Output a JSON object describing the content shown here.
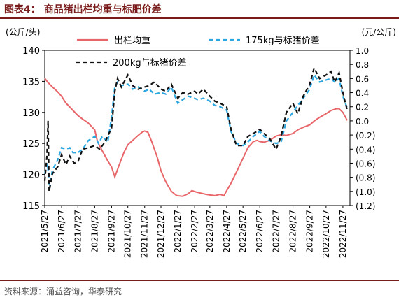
{
  "title": "图表4： 商品猪出栏均重与标肥价差",
  "source": "资料来源：涌益咨询，华泰研究",
  "chart_data": {
    "type": "line",
    "left_axis": {
      "unit": "(公斤/头)",
      "min": 115,
      "max": 140,
      "ticks": [
        "115",
        "120",
        "125",
        "130",
        "135",
        "140"
      ]
    },
    "right_axis": {
      "unit": "(元/公斤)",
      "min": -1.2,
      "max": 1.0,
      "ticks": [
        "1.0",
        "0.8",
        "0.6",
        "0.4",
        "0.2",
        "0.0",
        "(0.2)",
        "(0.4)",
        "(0.6)",
        "(0.8)",
        "(1.0)",
        "(1.2)"
      ]
    },
    "x_ticks": [
      "2021/5/27",
      "2021/6/27",
      "2021/7/27",
      "2021/8/27",
      "2021/9/27",
      "2021/10/27",
      "2021/11/27",
      "2021/12/27",
      "2022/1/27",
      "2022/2/27",
      "2022/3/27",
      "2022/4/27",
      "2022/5/27",
      "2022/6/27",
      "2022/7/27",
      "2022/8/27",
      "2022/9/27",
      "2022/10/27",
      "2022/11/27"
    ],
    "series": [
      {
        "name": "出栏均重",
        "axis": "left",
        "color": "#e8666a",
        "dash": "",
        "points": [
          [
            "2021/5/27",
            135.5
          ],
          [
            "2021/6/2",
            134.8
          ],
          [
            "2021/6/10",
            134.1
          ],
          [
            "2021/6/20",
            133.3
          ],
          [
            "2021/6/27",
            132.6
          ],
          [
            "2021/7/5",
            131.5
          ],
          [
            "2021/7/15",
            130.6
          ],
          [
            "2021/7/27",
            129.5
          ],
          [
            "2021/8/5",
            128.9
          ],
          [
            "2021/8/15",
            128.3
          ],
          [
            "2021/8/27",
            127.2
          ],
          [
            "2021/9/1",
            125.3
          ],
          [
            "2021/9/10",
            123.8
          ],
          [
            "2021/9/20",
            122.2
          ],
          [
            "2021/9/27",
            121.2
          ],
          [
            "2021/10/3",
            119.6
          ],
          [
            "2021/10/10",
            121.3
          ],
          [
            "2021/10/20",
            123.6
          ],
          [
            "2021/10/27",
            124.8
          ],
          [
            "2021/11/5",
            125.5
          ],
          [
            "2021/11/15",
            126.3
          ],
          [
            "2021/11/22",
            126.8
          ],
          [
            "2021/11/27",
            127.0
          ],
          [
            "2021/12/3",
            126.8
          ],
          [
            "2021/12/10",
            125.3
          ],
          [
            "2021/12/20",
            122.8
          ],
          [
            "2021/12/27",
            120.6
          ],
          [
            "2022/1/5",
            118.8
          ],
          [
            "2022/1/15",
            117.3
          ],
          [
            "2022/1/25",
            116.6
          ],
          [
            "2022/2/5",
            116.5
          ],
          [
            "2022/2/15",
            116.9
          ],
          [
            "2022/2/22",
            117.4
          ],
          [
            "2022/3/1",
            117.2
          ],
          [
            "2022/3/10",
            117.0
          ],
          [
            "2022/3/20",
            116.8
          ],
          [
            "2022/3/27",
            116.7
          ],
          [
            "2022/4/5",
            116.6
          ],
          [
            "2022/4/15",
            116.8
          ],
          [
            "2022/4/22",
            116.6
          ],
          [
            "2022/4/27",
            117.4
          ],
          [
            "2022/5/5",
            118.6
          ],
          [
            "2022/5/15",
            120.4
          ],
          [
            "2022/5/27",
            122.6
          ],
          [
            "2022/6/5",
            124.3
          ],
          [
            "2022/6/15",
            125.3
          ],
          [
            "2022/6/22",
            125.5
          ],
          [
            "2022/6/27",
            125.3
          ],
          [
            "2022/7/5",
            125.2
          ],
          [
            "2022/7/15",
            125.5
          ],
          [
            "2022/7/22",
            125.9
          ],
          [
            "2022/7/27",
            126.2
          ],
          [
            "2022/8/5",
            126.4
          ],
          [
            "2022/8/15",
            126.3
          ],
          [
            "2022/8/27",
            126.6
          ],
          [
            "2022/9/5",
            127.2
          ],
          [
            "2022/9/15",
            127.6
          ],
          [
            "2022/9/27",
            128.0
          ],
          [
            "2022/10/5",
            128.6
          ],
          [
            "2022/10/15",
            129.2
          ],
          [
            "2022/10/27",
            129.8
          ],
          [
            "2022/11/5",
            130.3
          ],
          [
            "2022/11/15",
            130.6
          ],
          [
            "2022/11/20",
            130.6
          ],
          [
            "2022/11/27",
            130.0
          ],
          [
            "2022/12/5",
            128.7
          ]
        ]
      },
      {
        "name": "175kg与标猪价差",
        "axis": "right",
        "color": "#2aa6e0",
        "dash": "6,4",
        "points": [
          [
            "2021/5/27",
            -0.75
          ],
          [
            "2021/6/1",
            -0.6
          ],
          [
            "2021/6/5",
            -0.95
          ],
          [
            "2021/6/10",
            -0.7
          ],
          [
            "2021/6/20",
            -0.55
          ],
          [
            "2021/6/27",
            -0.38
          ],
          [
            "2021/7/5",
            -0.4
          ],
          [
            "2021/7/12",
            -0.38
          ],
          [
            "2021/7/18",
            -0.45
          ],
          [
            "2021/7/27",
            -0.45
          ],
          [
            "2021/8/5",
            -0.4
          ],
          [
            "2021/8/15",
            -0.28
          ],
          [
            "2021/8/27",
            -0.22
          ],
          [
            "2021/9/3",
            -0.32
          ],
          [
            "2021/9/10",
            -0.22
          ],
          [
            "2021/9/20",
            -0.3
          ],
          [
            "2021/9/27",
            0.05
          ],
          [
            "2021/10/3",
            0.48
          ],
          [
            "2021/10/8",
            0.55
          ],
          [
            "2021/10/15",
            0.5
          ],
          [
            "2021/10/27",
            0.52
          ],
          [
            "2021/11/5",
            0.45
          ],
          [
            "2021/11/15",
            0.48
          ],
          [
            "2021/11/27",
            0.42
          ],
          [
            "2021/12/5",
            0.45
          ],
          [
            "2021/12/15",
            0.38
          ],
          [
            "2021/12/27",
            0.4
          ],
          [
            "2022/1/5",
            0.38
          ],
          [
            "2022/1/15",
            0.48
          ],
          [
            "2022/1/27",
            0.25
          ],
          [
            "2022/2/5",
            0.3
          ],
          [
            "2022/2/15",
            0.35
          ],
          [
            "2022/2/27",
            0.32
          ],
          [
            "2022/3/5",
            0.3
          ],
          [
            "2022/3/15",
            0.32
          ],
          [
            "2022/3/27",
            0.28
          ],
          [
            "2022/4/5",
            0.22
          ],
          [
            "2022/4/15",
            0.2
          ],
          [
            "2022/4/27",
            0.15
          ],
          [
            "2022/5/5",
            -0.15
          ],
          [
            "2022/5/15",
            -0.32
          ],
          [
            "2022/5/27",
            -0.35
          ],
          [
            "2022/6/5",
            -0.3
          ],
          [
            "2022/6/15",
            -0.22
          ],
          [
            "2022/6/27",
            -0.15
          ],
          [
            "2022/7/5",
            -0.22
          ],
          [
            "2022/7/15",
            -0.28
          ],
          [
            "2022/7/27",
            -0.32
          ],
          [
            "2022/8/5",
            -0.3
          ],
          [
            "2022/8/15",
            0.0
          ],
          [
            "2022/8/27",
            0.12
          ],
          [
            "2022/9/5",
            0.22
          ],
          [
            "2022/9/15",
            0.32
          ],
          [
            "2022/9/27",
            0.45
          ],
          [
            "2022/10/5",
            0.65
          ],
          [
            "2022/10/15",
            0.55
          ],
          [
            "2022/10/27",
            0.58
          ],
          [
            "2022/11/5",
            0.6
          ],
          [
            "2022/11/12",
            0.55
          ],
          [
            "2022/11/20",
            0.6
          ],
          [
            "2022/11/27",
            0.35
          ],
          [
            "2022/12/5",
            0.18
          ]
        ]
      },
      {
        "name": "200kg与标猪价差",
        "axis": "right",
        "color": "#111111",
        "dash": "6,4",
        "points": [
          [
            "2021/5/27",
            -0.85
          ],
          [
            "2021/5/31",
            -0.5
          ],
          [
            "2021/6/2",
            0.0
          ],
          [
            "2021/6/4",
            -1.0
          ],
          [
            "2021/6/10",
            -0.75
          ],
          [
            "2021/6/20",
            -0.65
          ],
          [
            "2021/6/27",
            -0.48
          ],
          [
            "2021/7/5",
            -0.62
          ],
          [
            "2021/7/12",
            -0.5
          ],
          [
            "2021/7/20",
            -0.6
          ],
          [
            "2021/7/27",
            -0.58
          ],
          [
            "2021/8/5",
            -0.4
          ],
          [
            "2021/8/15",
            -0.38
          ],
          [
            "2021/8/27",
            -0.35
          ],
          [
            "2021/9/5",
            -0.4
          ],
          [
            "2021/9/15",
            -0.3
          ],
          [
            "2021/9/27",
            -0.1
          ],
          [
            "2021/10/3",
            0.42
          ],
          [
            "2021/10/8",
            0.6
          ],
          [
            "2021/10/15",
            0.48
          ],
          [
            "2021/10/27",
            0.65
          ],
          [
            "2021/11/5",
            0.5
          ],
          [
            "2021/11/15",
            0.45
          ],
          [
            "2021/11/27",
            0.48
          ],
          [
            "2021/12/5",
            0.5
          ],
          [
            "2021/12/15",
            0.55
          ],
          [
            "2021/12/27",
            0.45
          ],
          [
            "2022/1/5",
            0.42
          ],
          [
            "2022/1/15",
            0.52
          ],
          [
            "2022/1/27",
            0.32
          ],
          [
            "2022/2/5",
            0.4
          ],
          [
            "2022/2/15",
            0.38
          ],
          [
            "2022/2/27",
            0.42
          ],
          [
            "2022/3/5",
            0.38
          ],
          [
            "2022/3/15",
            0.45
          ],
          [
            "2022/3/27",
            0.35
          ],
          [
            "2022/4/5",
            0.28
          ],
          [
            "2022/4/15",
            0.25
          ],
          [
            "2022/4/27",
            0.2
          ],
          [
            "2022/5/5",
            -0.12
          ],
          [
            "2022/5/15",
            -0.35
          ],
          [
            "2022/5/27",
            -0.35
          ],
          [
            "2022/6/5",
            -0.22
          ],
          [
            "2022/6/15",
            -0.18
          ],
          [
            "2022/6/27",
            -0.12
          ],
          [
            "2022/7/5",
            -0.18
          ],
          [
            "2022/7/15",
            -0.25
          ],
          [
            "2022/7/27",
            -0.4
          ],
          [
            "2022/8/5",
            -0.22
          ],
          [
            "2022/8/15",
            0.12
          ],
          [
            "2022/8/27",
            0.25
          ],
          [
            "2022/9/5",
            0.1
          ],
          [
            "2022/9/15",
            0.35
          ],
          [
            "2022/9/27",
            0.52
          ],
          [
            "2022/10/5",
            0.75
          ],
          [
            "2022/10/15",
            0.6
          ],
          [
            "2022/10/27",
            0.65
          ],
          [
            "2022/11/5",
            0.7
          ],
          [
            "2022/11/12",
            0.55
          ],
          [
            "2022/11/20",
            0.68
          ],
          [
            "2022/11/27",
            0.4
          ],
          [
            "2022/12/5",
            0.15
          ]
        ]
      }
    ],
    "legend": "top"
  }
}
